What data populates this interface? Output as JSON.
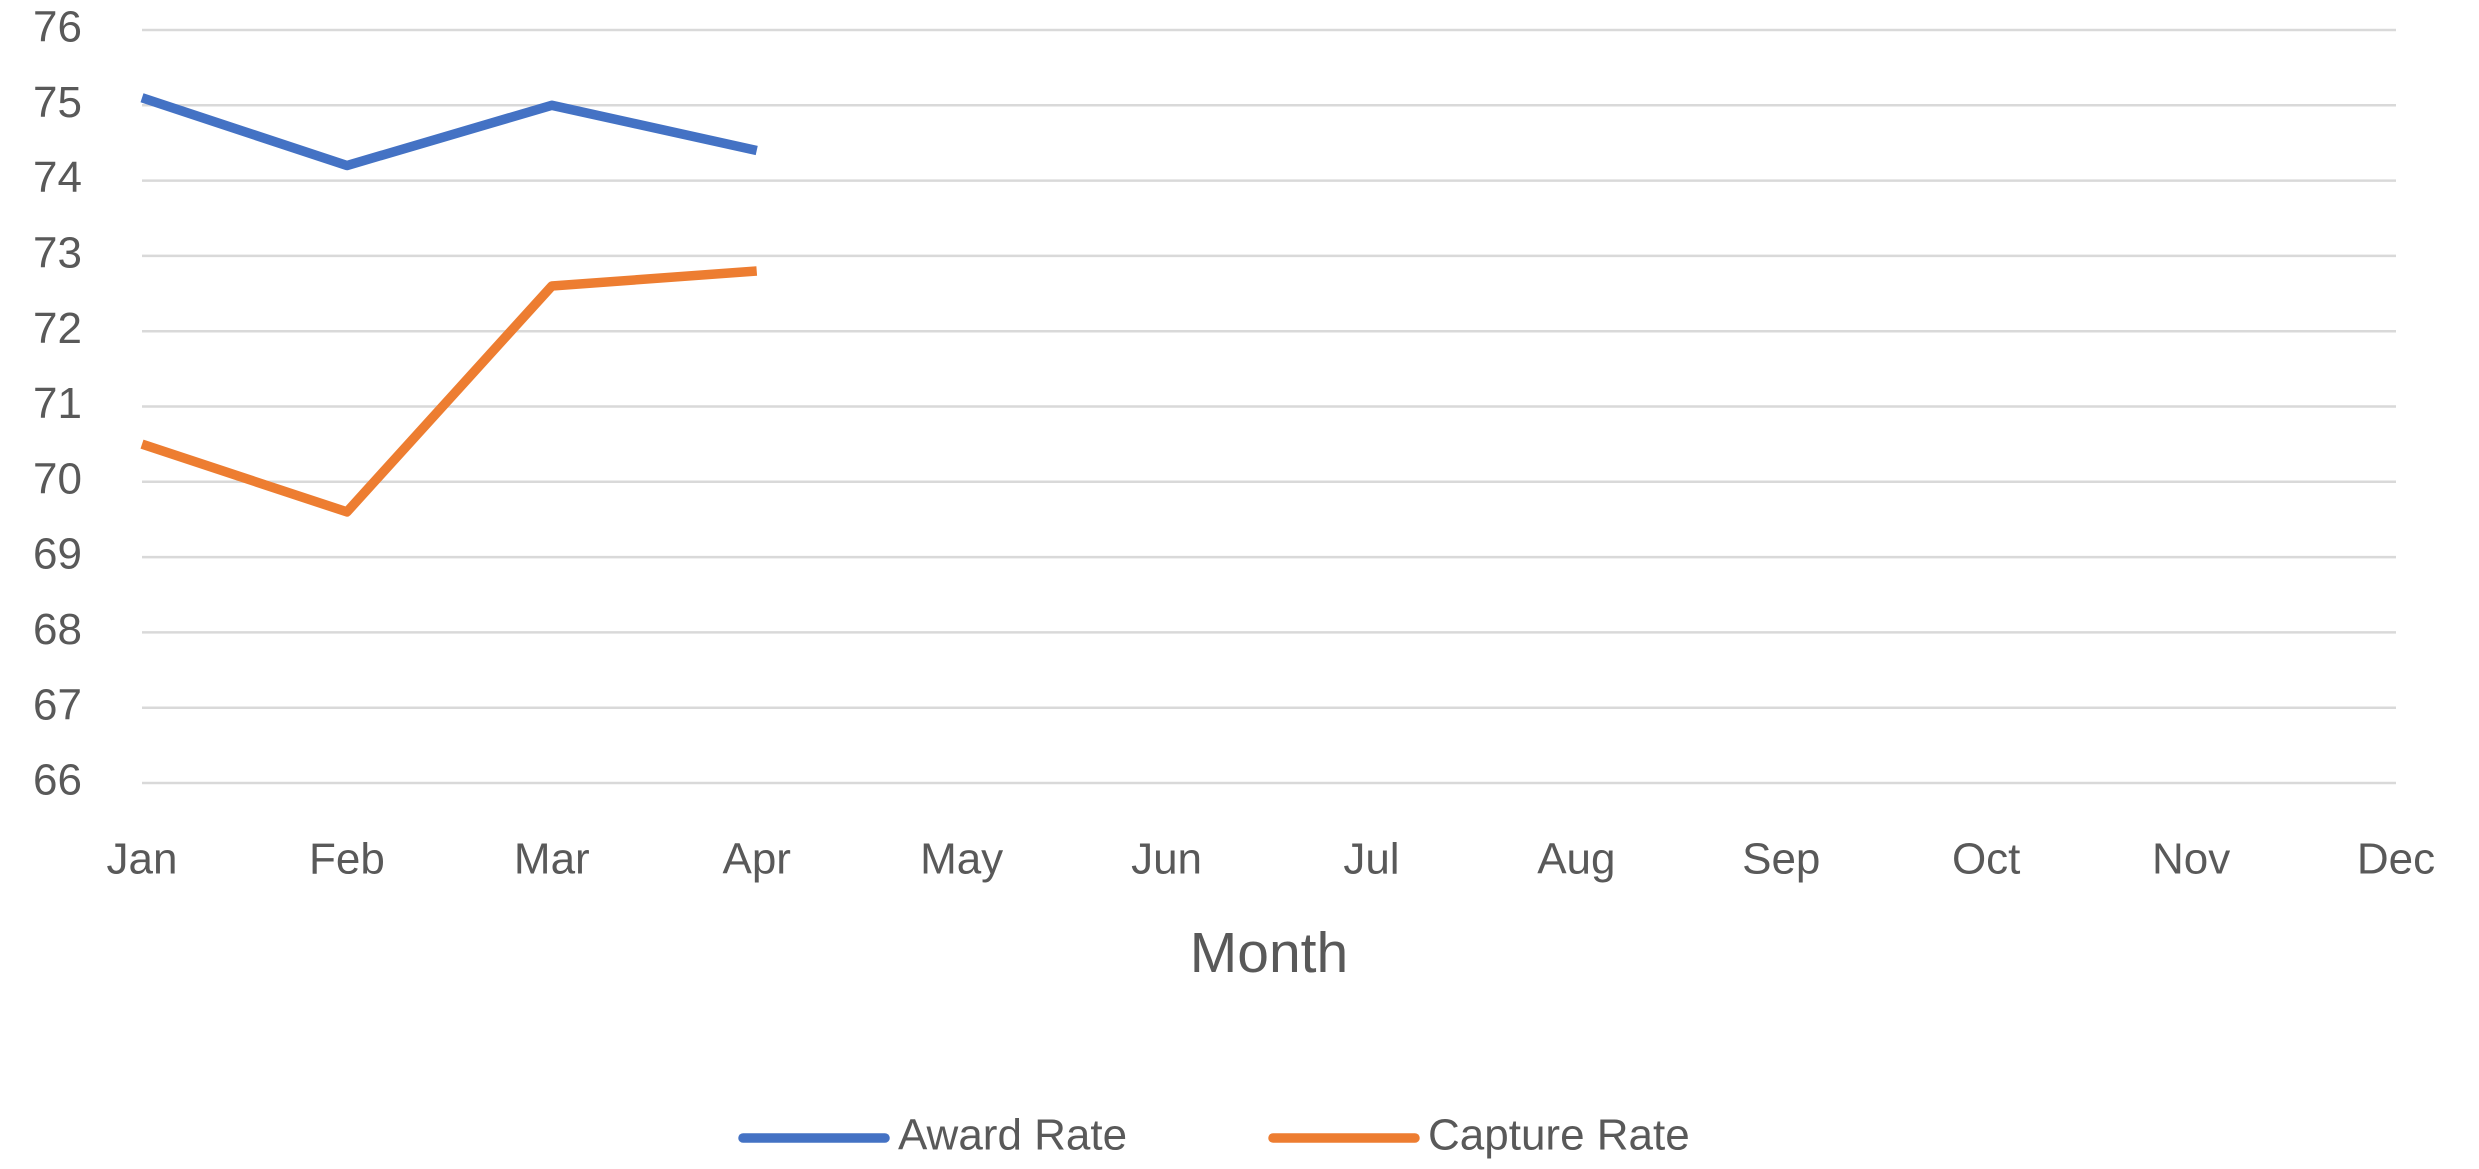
{
  "chart_data": {
    "type": "line",
    "x_label": "Month",
    "categories": [
      "Jan",
      "Feb",
      "Mar",
      "Apr",
      "May",
      "Jun",
      "Jul",
      "Aug",
      "Sep",
      "Oct",
      "Nov",
      "Dec"
    ],
    "series": [
      {
        "name": "Award Rate",
        "color": "#4472c4",
        "values": [
          75.1,
          74.2,
          75.0,
          74.4,
          null,
          null,
          null,
          null,
          null,
          null,
          null,
          null
        ]
      },
      {
        "name": "Capture Rate",
        "color": "#ed7d31",
        "values": [
          70.5,
          69.6,
          72.6,
          72.8,
          null,
          null,
          null,
          null,
          null,
          null,
          null,
          null
        ]
      }
    ],
    "ylim": [
      66,
      76
    ],
    "yticks": [
      66,
      67,
      68,
      69,
      70,
      71,
      72,
      73,
      74,
      75,
      76
    ],
    "grid": true,
    "legend": "bottom"
  }
}
